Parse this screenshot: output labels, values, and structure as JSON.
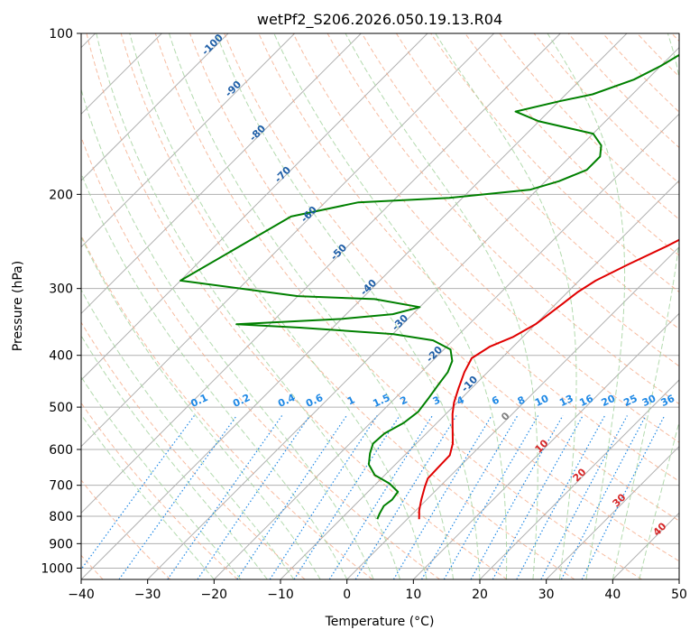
{
  "chart_data": {
    "type": "line",
    "chart_kind": "skew-t log-p diagram",
    "title": "wetPf2_S206.2026.050.19.13.R04",
    "xlabel": "Temperature (°C)",
    "ylabel": "Pressure (hPa)",
    "xlim": [
      -40,
      50
    ],
    "ylim": [
      1050,
      100
    ],
    "yscale": "log",
    "x_ticks": [
      -40,
      -30,
      -20,
      -10,
      0,
      10,
      20,
      30,
      40,
      50
    ],
    "y_ticks": [
      100,
      200,
      300,
      400,
      500,
      600,
      700,
      800,
      900,
      1000
    ],
    "grid": true,
    "series": [
      {
        "role": "temperature",
        "color": "#e00000",
        "points": [
          [
            1.8,
            810
          ],
          [
            0.5,
            780
          ],
          [
            -0.8,
            745
          ],
          [
            -2.2,
            705
          ],
          [
            -3.0,
            680
          ],
          [
            -3.1,
            650
          ],
          [
            -3.2,
            615
          ],
          [
            -4.5,
            585
          ],
          [
            -7.0,
            545
          ],
          [
            -9.0,
            515
          ],
          [
            -10.5,
            490
          ],
          [
            -12.0,
            460
          ],
          [
            -13.5,
            430
          ],
          [
            -14.5,
            405
          ],
          [
            -13.5,
            385
          ],
          [
            -11.5,
            370
          ],
          [
            -10.0,
            350
          ],
          [
            -9.5,
            335
          ],
          [
            -9.0,
            320
          ],
          [
            -8.5,
            305
          ],
          [
            -7.5,
            290
          ],
          [
            -5.0,
            270
          ],
          [
            -2.0,
            250
          ],
          [
            0.5,
            232
          ],
          [
            3.0,
            215
          ],
          [
            5.0,
            200
          ],
          [
            7.0,
            185
          ],
          [
            9.5,
            170
          ],
          [
            13.0,
            158
          ],
          [
            16.0,
            148
          ],
          [
            18.5,
            140
          ],
          [
            19.5,
            133
          ],
          [
            20.0,
            125
          ],
          [
            21.5,
            118
          ],
          [
            23.0,
            112
          ],
          [
            25.0,
            106
          ],
          [
            27.0,
            100
          ]
        ]
      },
      {
        "role": "dewpoint",
        "color": "#008000",
        "points": [
          [
            -4.5,
            810
          ],
          [
            -5.0,
            790
          ],
          [
            -5.5,
            765
          ],
          [
            -5.2,
            745
          ],
          [
            -5.5,
            720
          ],
          [
            -8.0,
            695
          ],
          [
            -11.5,
            670
          ],
          [
            -14.0,
            640
          ],
          [
            -15.5,
            610
          ],
          [
            -16.5,
            585
          ],
          [
            -16.3,
            560
          ],
          [
            -15.0,
            535
          ],
          [
            -14.5,
            510
          ],
          [
            -15.0,
            480
          ],
          [
            -15.5,
            455
          ],
          [
            -16.0,
            430
          ],
          [
            -17.0,
            410
          ],
          [
            -19.0,
            390
          ],
          [
            -23.0,
            375
          ],
          [
            -30.0,
            365
          ],
          [
            -45.0,
            355
          ],
          [
            -55.0,
            350
          ],
          [
            -40.0,
            342
          ],
          [
            -33.0,
            335
          ],
          [
            -30.0,
            325
          ],
          [
            -38.0,
            314
          ],
          [
            -50.0,
            310
          ],
          [
            -70.0,
            290
          ],
          [
            -63.0,
            220
          ],
          [
            -55.0,
            207
          ],
          [
            -42.0,
            203
          ],
          [
            -31.0,
            196
          ],
          [
            -28.0,
            189
          ],
          [
            -25.5,
            180
          ],
          [
            -25.5,
            170
          ],
          [
            -27.0,
            162
          ],
          [
            -30.0,
            154
          ],
          [
            -40.0,
            146
          ],
          [
            -45.0,
            140
          ],
          [
            -40.0,
            134
          ],
          [
            -36.0,
            130
          ],
          [
            -32.0,
            122
          ],
          [
            -30.0,
            115
          ],
          [
            -28.5,
            108
          ],
          [
            -27.5,
            104
          ],
          [
            -26.5,
            100
          ]
        ]
      }
    ],
    "mixing_ratio_labels": [
      "0.1",
      "0.2",
      "0.4",
      "0.6",
      "1",
      "1.5",
      "2",
      "3",
      "4",
      "6",
      "8",
      "10",
      "13",
      "16",
      "20",
      "25",
      "30",
      "36"
    ],
    "mixing_ratio_values": [
      0.1,
      0.2,
      0.4,
      0.6,
      1,
      1.5,
      2,
      3,
      4,
      6,
      8,
      10,
      13,
      16,
      20,
      25,
      30,
      36
    ],
    "dry_adiabat_labels": [
      "-100",
      "-90",
      "-80",
      "-70",
      "-60",
      "-50",
      "-40",
      "-30",
      "-20",
      "-10"
    ],
    "moist_adiabat_labels": [
      "0",
      "10",
      "20",
      "30",
      "40"
    ]
  },
  "colors": {
    "temperature": "#e00000",
    "dewpoint": "#008000",
    "isotherm": "#b0b0b0",
    "isobar": "#b0b0b0",
    "dry_adiabat": "#f4a582",
    "moist_adiabat": "#a6d4a0",
    "mixing_ratio": "#1e88e5",
    "dry_label": "#1f5fa8",
    "moist_label": "#d62728",
    "zero_label": "#808080"
  }
}
